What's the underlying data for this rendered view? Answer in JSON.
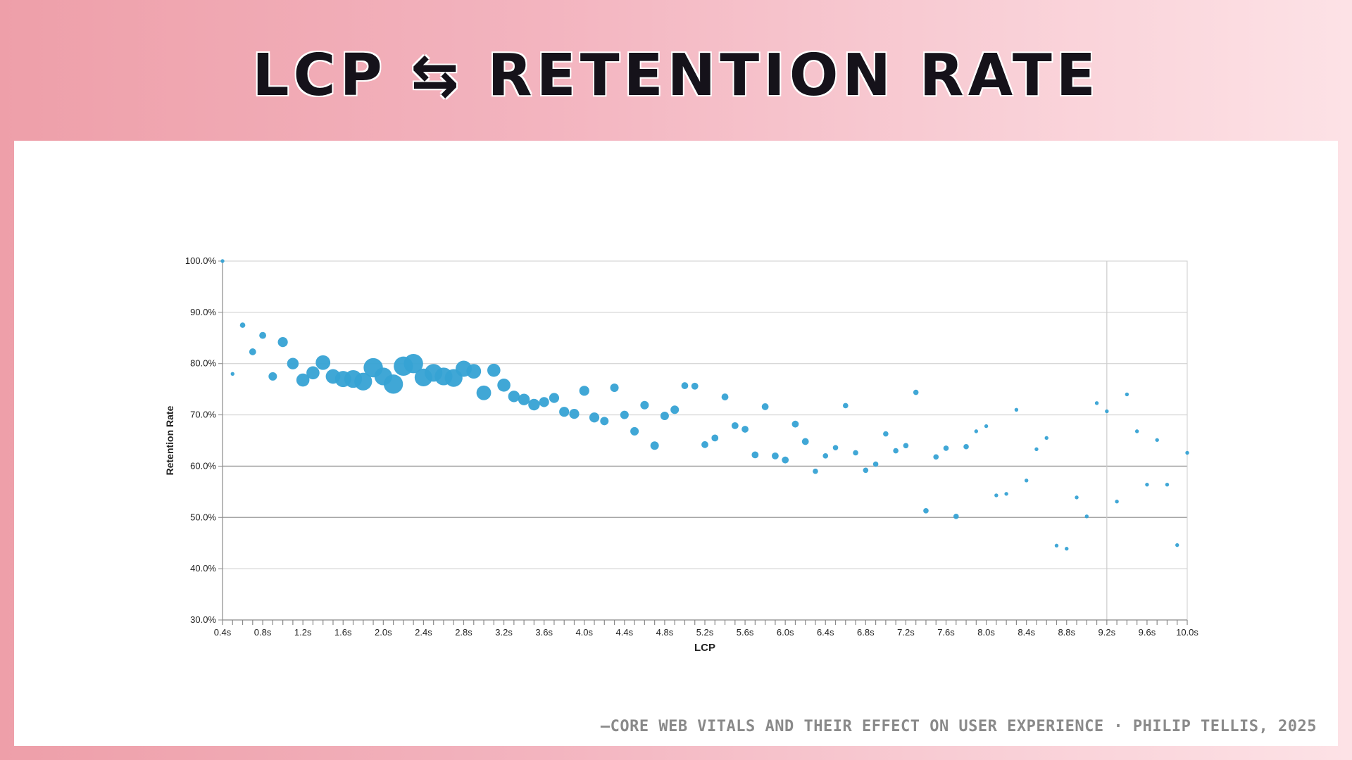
{
  "slide": {
    "title": "LCP ⇆ RETENTION RATE",
    "caption": "—CORE WEB VITALS AND THEIR EFFECT ON USER EXPERIENCE · PHILIP TELLIS, 2025"
  },
  "colors": {
    "point": "#36a2d4",
    "grid": "#cccccc",
    "grid_strong": "#9a9a9a",
    "axis": "#8a8a8a",
    "text": "#222222"
  },
  "chart_data": {
    "type": "scatter",
    "title": "",
    "xlabel": "LCP",
    "ylabel": "Retention Rate",
    "xlim": [
      0.4,
      10.0
    ],
    "ylim": [
      30,
      100
    ],
    "x_ticks": [
      0.4,
      0.8,
      1.2,
      1.6,
      2.0,
      2.4,
      2.8,
      3.2,
      3.6,
      4.0,
      4.4,
      4.8,
      5.2,
      5.6,
      6.0,
      6.4,
      6.8,
      7.2,
      7.6,
      8.0,
      8.4,
      8.8,
      9.2,
      9.6,
      10.0
    ],
    "x_tick_labels": [
      "0.4s",
      "0.8s",
      "1.2s",
      "1.6s",
      "2.0s",
      "2.4s",
      "2.8s",
      "3.2s",
      "3.6s",
      "4.0s",
      "4.4s",
      "4.8s",
      "5.2s",
      "5.6s",
      "6.0s",
      "6.4s",
      "6.8s",
      "7.2s",
      "7.6s",
      "8.0s",
      "8.4s",
      "8.8s",
      "9.2s",
      "9.6s",
      "10.0s"
    ],
    "y_ticks": [
      30,
      40,
      50,
      60,
      70,
      80,
      90,
      100
    ],
    "y_tick_labels": [
      "30.0%",
      "40.0%",
      "50.0%",
      "60.0%",
      "70.0%",
      "80.0%",
      "90.0%",
      "100.0%"
    ],
    "minor_x_step": 0.1,
    "strong_gridlines_y": [
      50,
      60
    ],
    "reference_line_x": 9.2,
    "points": [
      {
        "x": 0.4,
        "y": 100,
        "size": 1
      },
      {
        "x": 0.5,
        "y": 78,
        "size": 1
      },
      {
        "x": 0.6,
        "y": 87.5,
        "size": 2
      },
      {
        "x": 0.7,
        "y": 82.3,
        "size": 3
      },
      {
        "x": 0.8,
        "y": 85.5,
        "size": 3
      },
      {
        "x": 0.9,
        "y": 77.5,
        "size": 4
      },
      {
        "x": 1.0,
        "y": 84.2,
        "size": 5
      },
      {
        "x": 1.1,
        "y": 80,
        "size": 6
      },
      {
        "x": 1.2,
        "y": 76.8,
        "size": 7
      },
      {
        "x": 1.3,
        "y": 78.2,
        "size": 7
      },
      {
        "x": 1.4,
        "y": 80.2,
        "size": 8
      },
      {
        "x": 1.5,
        "y": 77.5,
        "size": 8
      },
      {
        "x": 1.6,
        "y": 77,
        "size": 9
      },
      {
        "x": 1.7,
        "y": 77,
        "size": 10
      },
      {
        "x": 1.8,
        "y": 76.5,
        "size": 10
      },
      {
        "x": 1.9,
        "y": 79.2,
        "size": 11
      },
      {
        "x": 2.0,
        "y": 77.5,
        "size": 10
      },
      {
        "x": 2.1,
        "y": 76,
        "size": 11
      },
      {
        "x": 2.2,
        "y": 79.5,
        "size": 11
      },
      {
        "x": 2.3,
        "y": 80,
        "size": 11
      },
      {
        "x": 2.4,
        "y": 77.3,
        "size": 10
      },
      {
        "x": 2.5,
        "y": 78.2,
        "size": 10
      },
      {
        "x": 2.6,
        "y": 77.5,
        "size": 10
      },
      {
        "x": 2.7,
        "y": 77.2,
        "size": 10
      },
      {
        "x": 2.8,
        "y": 79,
        "size": 9
      },
      {
        "x": 2.9,
        "y": 78.5,
        "size": 8
      },
      {
        "x": 3.0,
        "y": 74.3,
        "size": 8
      },
      {
        "x": 3.1,
        "y": 78.7,
        "size": 7
      },
      {
        "x": 3.2,
        "y": 75.8,
        "size": 7
      },
      {
        "x": 3.3,
        "y": 73.6,
        "size": 6
      },
      {
        "x": 3.4,
        "y": 73,
        "size": 6
      },
      {
        "x": 3.5,
        "y": 72,
        "size": 6
      },
      {
        "x": 3.6,
        "y": 72.5,
        "size": 5
      },
      {
        "x": 3.7,
        "y": 73.3,
        "size": 5
      },
      {
        "x": 3.8,
        "y": 70.6,
        "size": 5
      },
      {
        "x": 3.9,
        "y": 70.2,
        "size": 5
      },
      {
        "x": 4.0,
        "y": 74.7,
        "size": 5
      },
      {
        "x": 4.1,
        "y": 69.5,
        "size": 5
      },
      {
        "x": 4.2,
        "y": 68.8,
        "size": 4
      },
      {
        "x": 4.3,
        "y": 75.3,
        "size": 4
      },
      {
        "x": 4.4,
        "y": 70,
        "size": 4
      },
      {
        "x": 4.5,
        "y": 66.8,
        "size": 4
      },
      {
        "x": 4.6,
        "y": 71.9,
        "size": 4
      },
      {
        "x": 4.7,
        "y": 64,
        "size": 4
      },
      {
        "x": 4.8,
        "y": 69.8,
        "size": 4
      },
      {
        "x": 4.9,
        "y": 71,
        "size": 4
      },
      {
        "x": 5.0,
        "y": 75.7,
        "size": 3
      },
      {
        "x": 5.1,
        "y": 75.6,
        "size": 3
      },
      {
        "x": 5.2,
        "y": 64.2,
        "size": 3
      },
      {
        "x": 5.3,
        "y": 65.5,
        "size": 3
      },
      {
        "x": 5.4,
        "y": 73.5,
        "size": 3
      },
      {
        "x": 5.5,
        "y": 67.9,
        "size": 3
      },
      {
        "x": 5.6,
        "y": 67.2,
        "size": 3
      },
      {
        "x": 5.7,
        "y": 62.2,
        "size": 3
      },
      {
        "x": 5.8,
        "y": 71.6,
        "size": 3
      },
      {
        "x": 5.9,
        "y": 62,
        "size": 3
      },
      {
        "x": 6.0,
        "y": 61.2,
        "size": 3
      },
      {
        "x": 6.1,
        "y": 68.2,
        "size": 3
      },
      {
        "x": 6.2,
        "y": 64.8,
        "size": 3
      },
      {
        "x": 6.3,
        "y": 59,
        "size": 2
      },
      {
        "x": 6.4,
        "y": 62,
        "size": 2
      },
      {
        "x": 6.5,
        "y": 63.6,
        "size": 2
      },
      {
        "x": 6.6,
        "y": 71.8,
        "size": 2
      },
      {
        "x": 6.7,
        "y": 62.6,
        "size": 2
      },
      {
        "x": 6.8,
        "y": 59.2,
        "size": 2
      },
      {
        "x": 6.9,
        "y": 60.4,
        "size": 2
      },
      {
        "x": 7.0,
        "y": 66.3,
        "size": 2
      },
      {
        "x": 7.1,
        "y": 63,
        "size": 2
      },
      {
        "x": 7.2,
        "y": 64,
        "size": 2
      },
      {
        "x": 7.3,
        "y": 74.4,
        "size": 2
      },
      {
        "x": 7.4,
        "y": 51.3,
        "size": 2
      },
      {
        "x": 7.5,
        "y": 61.8,
        "size": 2
      },
      {
        "x": 7.6,
        "y": 63.5,
        "size": 2
      },
      {
        "x": 7.7,
        "y": 50.2,
        "size": 2
      },
      {
        "x": 7.8,
        "y": 63.8,
        "size": 2
      },
      {
        "x": 7.9,
        "y": 66.8,
        "size": 1
      },
      {
        "x": 8.0,
        "y": 67.8,
        "size": 1
      },
      {
        "x": 8.1,
        "y": 54.3,
        "size": 1
      },
      {
        "x": 8.2,
        "y": 54.6,
        "size": 1
      },
      {
        "x": 8.3,
        "y": 71,
        "size": 1
      },
      {
        "x": 8.4,
        "y": 57.2,
        "size": 1
      },
      {
        "x": 8.5,
        "y": 63.3,
        "size": 1
      },
      {
        "x": 8.6,
        "y": 65.5,
        "size": 1
      },
      {
        "x": 8.7,
        "y": 44.5,
        "size": 1
      },
      {
        "x": 8.8,
        "y": 43.9,
        "size": 1
      },
      {
        "x": 8.9,
        "y": 53.9,
        "size": 1
      },
      {
        "x": 9.0,
        "y": 50.2,
        "size": 1
      },
      {
        "x": 9.1,
        "y": 72.3,
        "size": 1
      },
      {
        "x": 9.2,
        "y": 70.7,
        "size": 1
      },
      {
        "x": 9.3,
        "y": 53.1,
        "size": 1
      },
      {
        "x": 9.4,
        "y": 74,
        "size": 1
      },
      {
        "x": 9.5,
        "y": 66.8,
        "size": 1
      },
      {
        "x": 9.6,
        "y": 56.4,
        "size": 1
      },
      {
        "x": 9.7,
        "y": 65.1,
        "size": 1
      },
      {
        "x": 9.8,
        "y": 56.4,
        "size": 1
      },
      {
        "x": 9.9,
        "y": 44.6,
        "size": 1
      },
      {
        "x": 10.0,
        "y": 62.6,
        "size": 1
      }
    ]
  }
}
